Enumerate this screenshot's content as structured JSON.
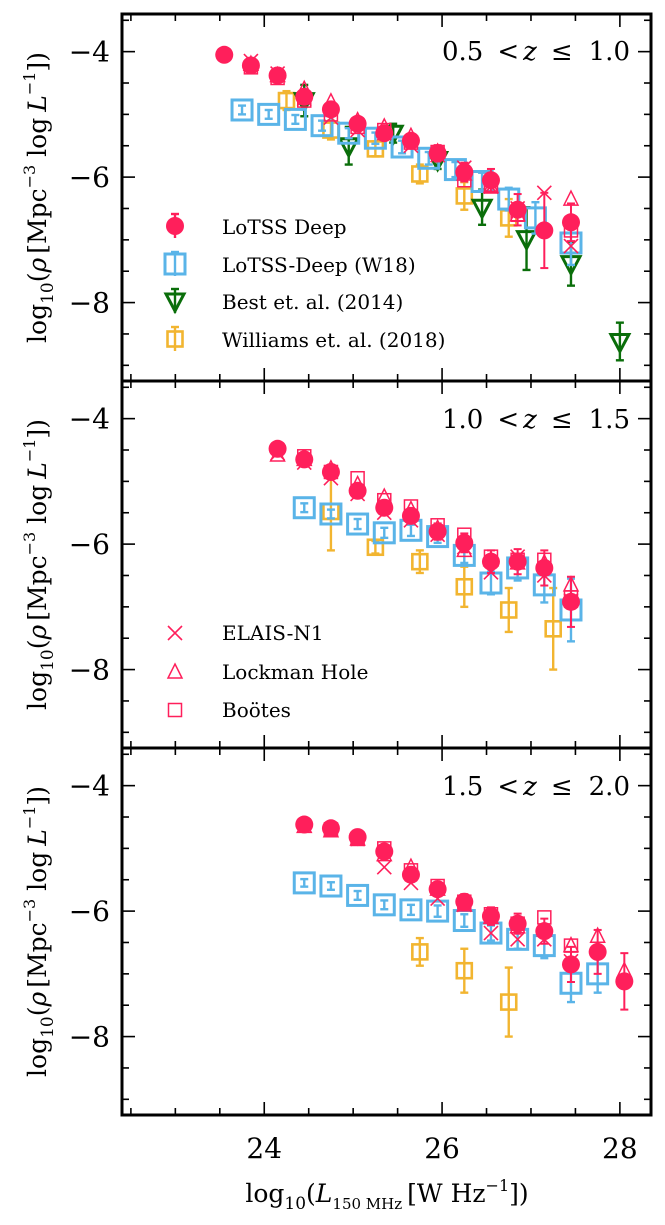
{
  "colors": {
    "lotss": "#ff1f5b",
    "w18": "#5ab4e8",
    "best": "#0a6e0a",
    "williams": "#f2b530",
    "frame": "#000000"
  },
  "chart_data": {
    "type": "scatter",
    "xlabel": "log10(L150 MHz [W Hz^-1])",
    "xlabel_parts": {
      "log": "log",
      "sub10": "10",
      "L": "L",
      "band": "150 MHz",
      "unit": "W Hz",
      "exp": "−1"
    },
    "ylabel_parts": {
      "log": "log",
      "sub10": "10",
      "rho": "ρ",
      "mpc": "Mpc",
      "exp3": "−3",
      "logL": "log",
      "L": "L",
      "exp1": "−1"
    },
    "xlim": [
      22.4,
      28.35
    ],
    "ylim": [
      -9.25,
      -3.4
    ],
    "xticks": [
      24,
      26,
      28
    ],
    "xtick_labels": [
      "24",
      "26",
      "28"
    ],
    "yticks": [
      -4,
      -6,
      -8
    ],
    "ytick_labels": [
      "−4",
      "−6",
      "−8"
    ],
    "legend_top": [
      {
        "key": "lotss",
        "label": "LoTSS Deep"
      },
      {
        "key": "w18",
        "label": "LoTSS-Deep (W18)"
      },
      {
        "key": "best",
        "label": "Best et. al. (2014)"
      },
      {
        "key": "williams",
        "label": "Williams et. al. (2018)"
      }
    ],
    "legend_fields": [
      {
        "key": "elais",
        "label": "ELAIS-N1"
      },
      {
        "key": "lockman",
        "label": "Lockman Hole"
      },
      {
        "key": "bootes",
        "label": "Boötes"
      }
    ],
    "panels": [
      {
        "z_range": {
          "lo": "0.5",
          "hi": "1.0",
          "lt": "<",
          "var": "z",
          "le": "≤"
        },
        "series": {
          "lotss": [
            [
              23.55,
              -4.05,
              0.04
            ],
            [
              23.85,
              -4.22,
              0.05
            ],
            [
              24.15,
              -4.38,
              0.06
            ],
            [
              24.45,
              -4.72,
              0.08
            ],
            [
              24.75,
              -4.92,
              0.09
            ],
            [
              25.05,
              -5.15,
              0.1
            ],
            [
              25.35,
              -5.3,
              0.1
            ],
            [
              25.65,
              -5.42,
              0.11
            ],
            [
              25.95,
              -5.62,
              0.13
            ],
            [
              26.25,
              -5.92,
              0.15
            ],
            [
              26.55,
              -6.05,
              0.18
            ],
            [
              26.85,
              -6.52,
              0.25
            ],
            [
              27.15,
              -6.85,
              0.6
            ],
            [
              27.45,
              -6.72,
              0.3
            ]
          ],
          "elais": [
            [
              23.85,
              -4.15
            ],
            [
              24.15,
              -4.35
            ],
            [
              24.45,
              -4.75
            ],
            [
              24.75,
              -5.05
            ],
            [
              25.05,
              -5.25
            ],
            [
              25.35,
              -5.3
            ],
            [
              25.65,
              -5.5
            ],
            [
              25.95,
              -5.65
            ],
            [
              26.25,
              -5.85
            ],
            [
              26.55,
              -6.15
            ],
            [
              26.85,
              -6.5
            ],
            [
              27.15,
              -6.25
            ],
            [
              27.45,
              -7.1
            ]
          ],
          "lockman": [
            [
              23.85,
              -4.2
            ],
            [
              24.15,
              -4.38
            ],
            [
              24.45,
              -4.6
            ],
            [
              24.75,
              -4.8
            ],
            [
              25.05,
              -5.1
            ],
            [
              25.35,
              -5.2
            ],
            [
              25.65,
              -5.35
            ],
            [
              25.95,
              -5.6
            ],
            [
              26.25,
              -5.95
            ],
            [
              26.55,
              -6.15
            ],
            [
              26.85,
              -6.6
            ],
            [
              27.45,
              -6.35
            ]
          ],
          "bootes": [
            [
              23.85,
              -4.25
            ],
            [
              24.15,
              -4.42
            ],
            [
              24.45,
              -4.78
            ],
            [
              24.75,
              -5.0
            ],
            [
              25.05,
              -5.2
            ],
            [
              25.35,
              -5.25
            ],
            [
              25.65,
              -5.45
            ],
            [
              25.95,
              -5.6
            ],
            [
              26.25,
              -6.05
            ],
            [
              26.55,
              -6.15
            ],
            [
              26.85,
              -6.6
            ],
            [
              27.45,
              -6.85
            ]
          ],
          "w18": [
            [
              23.75,
              -4.93,
              0.07
            ],
            [
              24.05,
              -5.0,
              0.07
            ],
            [
              24.35,
              -5.08,
              0.07
            ],
            [
              24.65,
              -5.18,
              0.08
            ],
            [
              24.95,
              -5.3,
              0.08
            ],
            [
              25.25,
              -5.38,
              0.09
            ],
            [
              25.55,
              -5.52,
              0.1
            ],
            [
              25.85,
              -5.7,
              0.1
            ],
            [
              26.15,
              -5.88,
              0.12
            ],
            [
              26.45,
              -6.07,
              0.14
            ],
            [
              26.75,
              -6.35,
              0.18
            ],
            [
              27.05,
              -6.65,
              0.25
            ],
            [
              27.45,
              -7.05,
              0.35
            ]
          ],
          "best": [
            [
              24.45,
              -4.78,
              0.25
            ],
            [
              24.95,
              -5.5,
              0.3
            ],
            [
              25.45,
              -5.3,
              0.15
            ],
            [
              25.95,
              -5.72,
              0.15
            ],
            [
              26.45,
              -6.48,
              0.28
            ],
            [
              26.95,
              -6.98,
              0.5
            ],
            [
              27.45,
              -7.38,
              0.35
            ],
            [
              28.0,
              -8.62,
              0.3
            ]
          ],
          "williams": [
            [
              24.25,
              -4.78,
              0.15
            ],
            [
              24.75,
              -5.25,
              0.15
            ],
            [
              25.25,
              -5.55,
              0.12
            ],
            [
              25.75,
              -5.95,
              0.15
            ],
            [
              26.25,
              -6.3,
              0.22
            ],
            [
              26.75,
              -6.65,
              0.3
            ]
          ]
        }
      },
      {
        "z_range": {
          "lo": "1.0",
          "hi": "1.5",
          "lt": "<",
          "var": "z",
          "le": "≤"
        },
        "series": {
          "lotss": [
            [
              24.15,
              -4.48,
              0.06
            ],
            [
              24.45,
              -4.65,
              0.07
            ],
            [
              24.75,
              -4.85,
              0.08
            ],
            [
              25.05,
              -5.15,
              0.09
            ],
            [
              25.35,
              -5.42,
              0.11
            ],
            [
              25.65,
              -5.55,
              0.12
            ],
            [
              25.95,
              -5.8,
              0.13
            ],
            [
              26.25,
              -5.98,
              0.15
            ],
            [
              26.55,
              -6.28,
              0.18
            ],
            [
              26.85,
              -6.28,
              0.2
            ],
            [
              27.15,
              -6.38,
              0.28
            ],
            [
              27.45,
              -6.92,
              0.4
            ]
          ],
          "elais": [
            [
              24.15,
              -4.55
            ],
            [
              24.45,
              -4.7
            ],
            [
              24.75,
              -4.95
            ],
            [
              25.05,
              -5.2
            ],
            [
              25.35,
              -5.5
            ],
            [
              25.65,
              -5.62
            ],
            [
              25.95,
              -5.85
            ],
            [
              26.25,
              -6.05
            ],
            [
              26.55,
              -6.45
            ],
            [
              26.85,
              -6.2
            ],
            [
              27.15,
              -6.5
            ],
            [
              27.45,
              -6.9
            ]
          ],
          "lockman": [
            [
              24.15,
              -4.58
            ],
            [
              24.45,
              -4.65
            ],
            [
              24.75,
              -4.8
            ],
            [
              25.05,
              -5.05
            ],
            [
              25.35,
              -5.25
            ],
            [
              25.65,
              -5.45
            ],
            [
              25.95,
              -5.75
            ],
            [
              26.25,
              -6.1
            ],
            [
              26.55,
              -6.25
            ],
            [
              26.85,
              -6.3
            ],
            [
              27.15,
              -6.3
            ],
            [
              27.45,
              -6.65
            ]
          ],
          "bootes": [
            [
              24.45,
              -4.6
            ],
            [
              24.75,
              -4.85
            ],
            [
              25.05,
              -4.95
            ],
            [
              25.35,
              -5.3
            ],
            [
              25.65,
              -5.4
            ],
            [
              25.95,
              -5.7
            ],
            [
              26.25,
              -5.85
            ],
            [
              26.55,
              -6.2
            ],
            [
              26.85,
              -6.25
            ],
            [
              27.15,
              -6.25
            ],
            [
              27.45,
              -6.85
            ]
          ],
          "w18": [
            [
              24.45,
              -5.42,
              0.07
            ],
            [
              24.75,
              -5.52,
              0.07
            ],
            [
              25.05,
              -5.68,
              0.08
            ],
            [
              25.35,
              -5.82,
              0.08
            ],
            [
              25.65,
              -5.78,
              0.09
            ],
            [
              25.95,
              -5.88,
              0.1
            ],
            [
              26.25,
              -6.18,
              0.12
            ],
            [
              26.55,
              -6.62,
              0.18
            ],
            [
              26.85,
              -6.38,
              0.2
            ],
            [
              27.15,
              -6.65,
              0.28
            ],
            [
              27.45,
              -7.05,
              0.5
            ]
          ],
          "williams": [
            [
              24.75,
              -5.48,
              0.62
            ],
            [
              25.25,
              -6.05,
              0.1
            ],
            [
              25.75,
              -6.28,
              0.18
            ],
            [
              26.25,
              -6.68,
              0.32
            ],
            [
              26.75,
              -7.05,
              0.35
            ],
            [
              27.25,
              -7.35,
              0.65
            ]
          ]
        }
      },
      {
        "z_range": {
          "lo": "1.5",
          "hi": "2.0",
          "lt": "<",
          "var": "z",
          "le": "≤"
        },
        "series": {
          "lotss": [
            [
              24.45,
              -4.62,
              0.05
            ],
            [
              24.75,
              -4.68,
              0.06
            ],
            [
              25.05,
              -4.82,
              0.07
            ],
            [
              25.35,
              -5.05,
              0.08
            ],
            [
              25.65,
              -5.42,
              0.1
            ],
            [
              25.95,
              -5.65,
              0.11
            ],
            [
              26.25,
              -5.85,
              0.12
            ],
            [
              26.55,
              -6.08,
              0.14
            ],
            [
              26.85,
              -6.2,
              0.16
            ],
            [
              27.15,
              -6.32,
              0.2
            ],
            [
              27.45,
              -6.85,
              0.28
            ],
            [
              27.75,
              -6.65,
              0.35
            ],
            [
              28.05,
              -7.12,
              0.45
            ]
          ],
          "elais": [
            [
              24.75,
              -4.7
            ],
            [
              25.05,
              -4.85
            ],
            [
              25.35,
              -5.3
            ],
            [
              25.65,
              -5.55
            ],
            [
              25.95,
              -5.8
            ],
            [
              26.25,
              -5.9
            ],
            [
              26.55,
              -6.35
            ],
            [
              26.85,
              -6.45
            ],
            [
              27.15,
              -6.45
            ],
            [
              27.45,
              -6.8
            ]
          ],
          "lockman": [
            [
              24.45,
              -4.65
            ],
            [
              24.75,
              -4.72
            ],
            [
              25.05,
              -4.85
            ],
            [
              25.35,
              -5.1
            ],
            [
              25.65,
              -5.3
            ],
            [
              25.95,
              -5.65
            ],
            [
              26.25,
              -5.9
            ],
            [
              26.55,
              -6.1
            ],
            [
              26.85,
              -6.25
            ],
            [
              27.15,
              -6.3
            ],
            [
              27.45,
              -6.55
            ],
            [
              27.75,
              -6.4
            ],
            [
              28.05,
              -6.95
            ]
          ],
          "bootes": [
            [
              24.75,
              -4.7
            ],
            [
              25.05,
              -4.85
            ],
            [
              25.35,
              -5.0
            ],
            [
              25.65,
              -5.35
            ],
            [
              25.95,
              -5.6
            ],
            [
              26.25,
              -5.85
            ],
            [
              26.55,
              -6.05
            ],
            [
              26.85,
              -6.2
            ],
            [
              27.15,
              -6.1
            ],
            [
              27.45,
              -6.55
            ]
          ],
          "w18": [
            [
              24.45,
              -5.55,
              0.06
            ],
            [
              24.75,
              -5.6,
              0.06
            ],
            [
              25.05,
              -5.75,
              0.07
            ],
            [
              25.35,
              -5.9,
              0.07
            ],
            [
              25.65,
              -5.98,
              0.08
            ],
            [
              25.95,
              -6.0,
              0.09
            ],
            [
              26.25,
              -6.15,
              0.1
            ],
            [
              26.55,
              -6.35,
              0.12
            ],
            [
              26.85,
              -6.45,
              0.15
            ],
            [
              27.15,
              -6.55,
              0.2
            ],
            [
              27.45,
              -7.15,
              0.3
            ],
            [
              27.75,
              -7.0,
              0.3
            ]
          ],
          "williams": [
            [
              25.75,
              -6.65,
              0.22
            ],
            [
              26.25,
              -6.95,
              0.35
            ],
            [
              26.75,
              -7.45,
              0.55
            ]
          ]
        }
      }
    ]
  }
}
